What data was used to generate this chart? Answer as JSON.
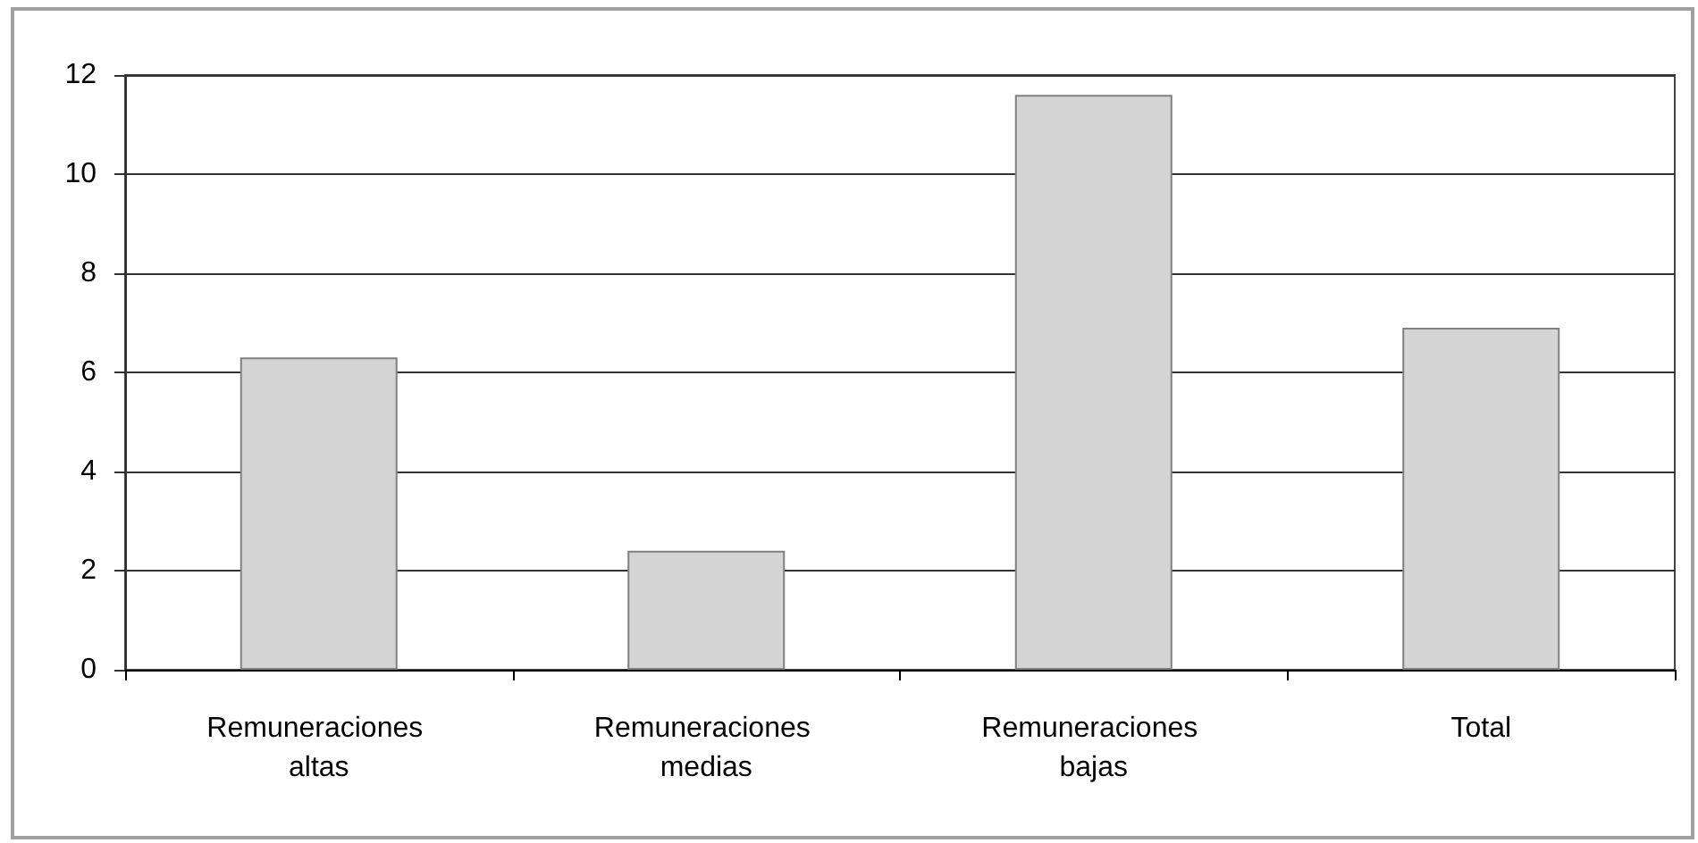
{
  "chart_data": {
    "type": "bar",
    "categories": [
      "Remuneraciones altas",
      "Remuneraciones medias",
      "Remuneraciones bajas",
      "Total"
    ],
    "values": [
      6.3,
      2.4,
      11.6,
      6.9
    ],
    "color": "#d4d4d4",
    "ylim": [
      0,
      12
    ],
    "yticks": [
      0,
      2,
      4,
      6,
      8,
      10,
      12
    ],
    "grid": "y"
  }
}
